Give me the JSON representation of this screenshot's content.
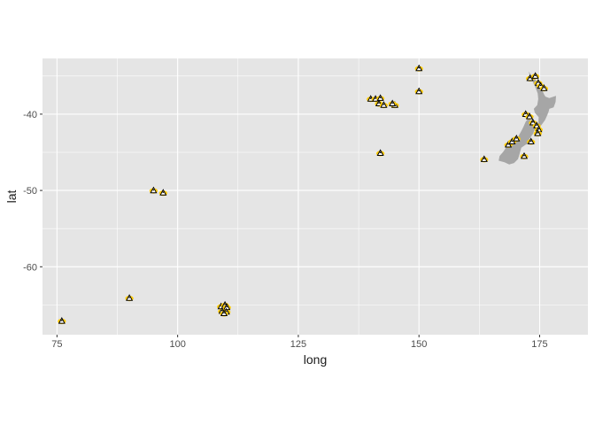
{
  "chart_data": {
    "type": "scatter",
    "title": "",
    "xlabel": "long",
    "ylabel": "lat",
    "xlim": [
      72,
      185
    ],
    "ylim": [
      -68.9,
      -32.7
    ],
    "x_ticks": [
      75,
      100,
      125,
      150,
      175
    ],
    "y_ticks": [
      -40,
      -50,
      -60
    ],
    "x_tick_labels": [
      "75",
      "100",
      "125",
      "150",
      "175"
    ],
    "y_tick_labels": [
      "-40",
      "-50",
      "-60"
    ],
    "grid": true,
    "legend": "none",
    "panel_background": "#e5e5e5",
    "grid_color": "#ffffff",
    "land_color": "#a6a6a6",
    "marker_fill": "#ffcc00",
    "marker_outline": "#000000",
    "marker_icon": "penguin-icon",
    "new_zealand_outline": [
      [
        172.7,
        -34.4
      ],
      [
        173.4,
        -35.0
      ],
      [
        174.1,
        -35.4
      ],
      [
        174.6,
        -36.2
      ],
      [
        175.1,
        -36.4
      ],
      [
        175.5,
        -36.8
      ],
      [
        175.9,
        -37.4
      ],
      [
        176.2,
        -37.7
      ],
      [
        177.0,
        -37.9
      ],
      [
        177.9,
        -37.7
      ],
      [
        178.4,
        -37.6
      ],
      [
        178.3,
        -38.4
      ],
      [
        177.9,
        -39.1
      ],
      [
        177.0,
        -39.3
      ],
      [
        176.9,
        -39.6
      ],
      [
        176.6,
        -40.1
      ],
      [
        176.1,
        -40.8
      ],
      [
        175.3,
        -41.5
      ],
      [
        174.7,
        -41.3
      ],
      [
        174.8,
        -40.4
      ],
      [
        174.0,
        -39.8
      ],
      [
        173.8,
        -39.3
      ],
      [
        174.5,
        -38.8
      ],
      [
        174.7,
        -38.0
      ],
      [
        174.6,
        -37.3
      ],
      [
        174.2,
        -36.6
      ],
      [
        173.6,
        -35.8
      ],
      [
        173.0,
        -35.0
      ],
      [
        174.3,
        -41.4
      ],
      [
        174.0,
        -42.0
      ],
      [
        173.6,
        -42.6
      ],
      [
        172.8,
        -43.3
      ],
      [
        172.9,
        -43.8
      ],
      [
        172.1,
        -44.0
      ],
      [
        171.2,
        -44.4
      ],
      [
        170.8,
        -45.3
      ],
      [
        170.5,
        -45.9
      ],
      [
        169.7,
        -46.4
      ],
      [
        168.7,
        -46.6
      ],
      [
        167.7,
        -46.3
      ],
      [
        166.5,
        -46.1
      ],
      [
        166.7,
        -45.5
      ],
      [
        167.5,
        -44.9
      ],
      [
        168.3,
        -44.1
      ],
      [
        169.6,
        -43.5
      ],
      [
        170.6,
        -42.9
      ],
      [
        171.3,
        -42.1
      ],
      [
        171.6,
        -41.7
      ],
      [
        172.1,
        -41.0
      ],
      [
        172.7,
        -40.5
      ],
      [
        173.2,
        -40.9
      ],
      [
        173.9,
        -40.9
      ],
      [
        174.3,
        -41.3
      ]
    ],
    "points": [
      {
        "x": 76,
        "y": -67.1
      },
      {
        "x": 90,
        "y": -64.1
      },
      {
        "x": 95,
        "y": -50.0
      },
      {
        "x": 97,
        "y": -50.3
      },
      {
        "x": 109,
        "y": -65.2
      },
      {
        "x": 109.8,
        "y": -65.0
      },
      {
        "x": 110.2,
        "y": -65.3
      },
      {
        "x": 109.2,
        "y": -65.8
      },
      {
        "x": 110.1,
        "y": -65.9
      },
      {
        "x": 109.6,
        "y": -66.1
      },
      {
        "x": 140,
        "y": -38.0
      },
      {
        "x": 141,
        "y": -38.0
      },
      {
        "x": 142,
        "y": -37.9
      },
      {
        "x": 141.7,
        "y": -38.6
      },
      {
        "x": 142.7,
        "y": -38.8
      },
      {
        "x": 145,
        "y": -38.8
      },
      {
        "x": 144.5,
        "y": -38.6
      },
      {
        "x": 142,
        "y": -45.1
      },
      {
        "x": 150,
        "y": -34.0
      },
      {
        "x": 150,
        "y": -37.0
      },
      {
        "x": 163.5,
        "y": -45.9
      },
      {
        "x": 168.5,
        "y": -44.0
      },
      {
        "x": 169.3,
        "y": -43.6
      },
      {
        "x": 170.2,
        "y": -43.2
      },
      {
        "x": 171.8,
        "y": -45.5
      },
      {
        "x": 172.1,
        "y": -40.0
      },
      {
        "x": 172.9,
        "y": -40.3
      },
      {
        "x": 173.2,
        "y": -43.6
      },
      {
        "x": 173.6,
        "y": -41.1
      },
      {
        "x": 174.4,
        "y": -41.5
      },
      {
        "x": 174.8,
        "y": -42.0
      },
      {
        "x": 174.6,
        "y": -42.5
      },
      {
        "x": 173.0,
        "y": -35.3
      },
      {
        "x": 174.1,
        "y": -35.0
      },
      {
        "x": 174.7,
        "y": -35.9
      },
      {
        "x": 175.2,
        "y": -36.3
      },
      {
        "x": 175.9,
        "y": -36.6
      }
    ]
  }
}
